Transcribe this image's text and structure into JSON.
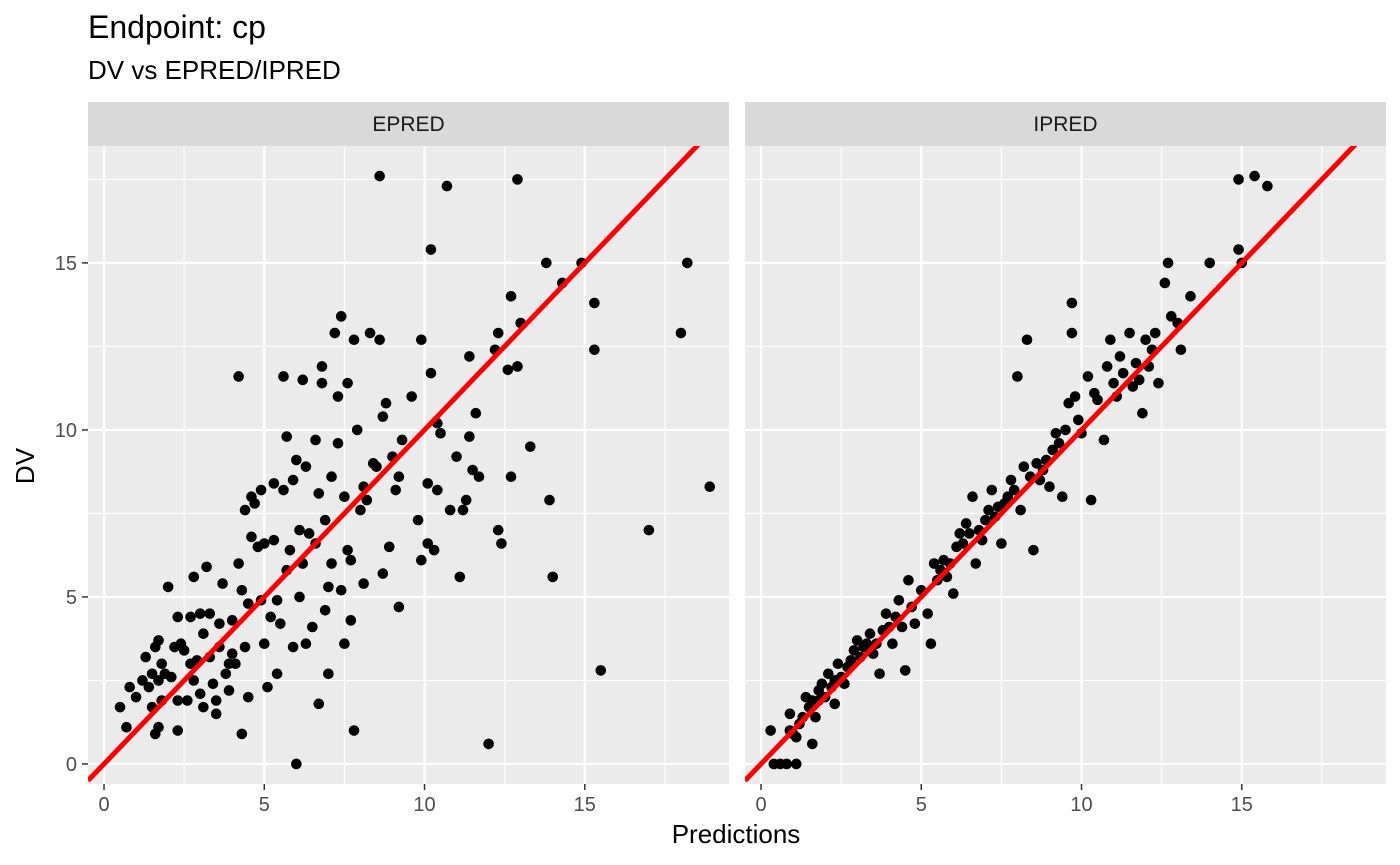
{
  "chart_data": {
    "type": "scatter",
    "title": "Endpoint:  cp",
    "subtitle": "DV vs EPRED/IPRED",
    "xlabel": "Predictions",
    "ylabel": "DV",
    "xlim": [
      -0.5,
      19.5
    ],
    "ylim": [
      -0.6,
      18.5
    ],
    "x_ticks": [
      0,
      5,
      10,
      15
    ],
    "y_ticks": [
      0,
      5,
      10,
      15
    ],
    "grid": true,
    "reference_line": {
      "slope": 1,
      "intercept": 0,
      "color": "#ff0000"
    },
    "point_color": "#000000",
    "panels": [
      {
        "label": "EPRED",
        "points": [
          [
            0.5,
            1.7
          ],
          [
            0.7,
            1.1
          ],
          [
            0.8,
            2.3
          ],
          [
            1.0,
            2.0
          ],
          [
            1.2,
            2.5
          ],
          [
            1.3,
            3.2
          ],
          [
            1.4,
            2.3
          ],
          [
            1.5,
            2.7
          ],
          [
            1.5,
            1.7
          ],
          [
            1.6,
            3.5
          ],
          [
            1.6,
            0.9
          ],
          [
            1.7,
            3.7
          ],
          [
            1.7,
            2.5
          ],
          [
            1.7,
            1.1
          ],
          [
            1.8,
            3.0
          ],
          [
            1.8,
            1.9
          ],
          [
            1.9,
            2.7
          ],
          [
            2.0,
            5.3
          ],
          [
            2.1,
            2.6
          ],
          [
            2.2,
            3.5
          ],
          [
            2.3,
            4.4
          ],
          [
            2.3,
            1.9
          ],
          [
            2.3,
            1.0
          ],
          [
            2.4,
            3.6
          ],
          [
            2.5,
            3.4
          ],
          [
            2.6,
            1.9
          ],
          [
            2.7,
            4.4
          ],
          [
            2.7,
            3.0
          ],
          [
            2.8,
            2.5
          ],
          [
            2.8,
            5.6
          ],
          [
            2.9,
            3.1
          ],
          [
            3.0,
            4.5
          ],
          [
            3.0,
            2.1
          ],
          [
            3.1,
            3.9
          ],
          [
            3.1,
            1.7
          ],
          [
            3.2,
            5.9
          ],
          [
            3.3,
            4.5
          ],
          [
            3.3,
            3.2
          ],
          [
            3.4,
            2.4
          ],
          [
            3.5,
            1.9
          ],
          [
            3.5,
            1.5
          ],
          [
            3.6,
            4.2
          ],
          [
            3.6,
            3.5
          ],
          [
            3.7,
            5.4
          ],
          [
            3.8,
            2.7
          ],
          [
            3.9,
            3.0
          ],
          [
            3.9,
            2.2
          ],
          [
            4.0,
            4.3
          ],
          [
            4.0,
            3.3
          ],
          [
            4.1,
            3.0
          ],
          [
            4.2,
            6.0
          ],
          [
            4.2,
            11.6
          ],
          [
            4.3,
            0.9
          ],
          [
            4.3,
            5.2
          ],
          [
            4.4,
            3.5
          ],
          [
            4.4,
            7.6
          ],
          [
            4.5,
            4.8
          ],
          [
            4.5,
            2.0
          ],
          [
            4.6,
            6.8
          ],
          [
            4.6,
            8.0
          ],
          [
            4.7,
            7.8
          ],
          [
            4.8,
            6.5
          ],
          [
            4.9,
            4.9
          ],
          [
            4.9,
            8.2
          ],
          [
            5.0,
            6.6
          ],
          [
            5.0,
            3.6
          ],
          [
            5.1,
            2.3
          ],
          [
            5.2,
            4.4
          ],
          [
            5.3,
            6.7
          ],
          [
            5.3,
            8.4
          ],
          [
            5.4,
            4.9
          ],
          [
            5.4,
            2.7
          ],
          [
            5.5,
            4.2
          ],
          [
            5.6,
            8.2
          ],
          [
            5.6,
            11.6
          ],
          [
            5.7,
            5.8
          ],
          [
            5.7,
            9.8
          ],
          [
            5.8,
            6.4
          ],
          [
            5.9,
            3.5
          ],
          [
            5.9,
            8.5
          ],
          [
            6.0,
            9.1
          ],
          [
            6.0,
            0.0
          ],
          [
            6.1,
            7.0
          ],
          [
            6.1,
            5.0
          ],
          [
            6.2,
            11.5
          ],
          [
            6.2,
            6.0
          ],
          [
            6.3,
            3.6
          ],
          [
            6.3,
            8.9
          ],
          [
            6.4,
            6.9
          ],
          [
            6.5,
            4.1
          ],
          [
            6.6,
            6.6
          ],
          [
            6.6,
            9.7
          ],
          [
            6.7,
            1.8
          ],
          [
            6.7,
            8.1
          ],
          [
            6.8,
            11.4
          ],
          [
            6.8,
            11.9
          ],
          [
            6.9,
            4.6
          ],
          [
            6.9,
            7.3
          ],
          [
            7.0,
            2.7
          ],
          [
            7.0,
            5.3
          ],
          [
            7.1,
            6.0
          ],
          [
            7.1,
            8.6
          ],
          [
            7.2,
            12.9
          ],
          [
            7.3,
            9.6
          ],
          [
            7.3,
            11.0
          ],
          [
            7.4,
            13.4
          ],
          [
            7.4,
            5.2
          ],
          [
            7.5,
            8.0
          ],
          [
            7.5,
            3.6
          ],
          [
            7.6,
            6.4
          ],
          [
            7.6,
            11.4
          ],
          [
            7.7,
            6.1
          ],
          [
            7.7,
            4.3
          ],
          [
            7.8,
            12.7
          ],
          [
            7.8,
            1.0
          ],
          [
            7.9,
            10.0
          ],
          [
            8.0,
            7.6
          ],
          [
            8.1,
            5.4
          ],
          [
            8.1,
            8.3
          ],
          [
            8.2,
            7.9
          ],
          [
            8.3,
            12.9
          ],
          [
            8.4,
            9.0
          ],
          [
            8.5,
            8.9
          ],
          [
            8.6,
            12.7
          ],
          [
            8.6,
            17.6
          ],
          [
            8.7,
            5.7
          ],
          [
            8.7,
            10.4
          ],
          [
            8.8,
            10.8
          ],
          [
            8.9,
            6.5
          ],
          [
            9.0,
            9.2
          ],
          [
            9.1,
            8.2
          ],
          [
            9.2,
            8.6
          ],
          [
            9.2,
            4.7
          ],
          [
            9.3,
            9.7
          ],
          [
            9.6,
            11.0
          ],
          [
            9.8,
            7.3
          ],
          [
            9.9,
            12.7
          ],
          [
            9.9,
            6.1
          ],
          [
            10.1,
            8.4
          ],
          [
            10.1,
            6.6
          ],
          [
            10.2,
            15.4
          ],
          [
            10.2,
            11.7
          ],
          [
            10.3,
            6.4
          ],
          [
            10.4,
            10.2
          ],
          [
            10.4,
            8.2
          ],
          [
            10.5,
            9.9
          ],
          [
            10.7,
            17.3
          ],
          [
            10.8,
            7.6
          ],
          [
            11.0,
            9.2
          ],
          [
            11.1,
            5.6
          ],
          [
            11.2,
            7.6
          ],
          [
            11.3,
            7.9
          ],
          [
            11.4,
            12.2
          ],
          [
            11.4,
            9.8
          ],
          [
            11.5,
            8.8
          ],
          [
            11.6,
            10.5
          ],
          [
            11.7,
            8.6
          ],
          [
            12.0,
            0.6
          ],
          [
            12.2,
            12.4
          ],
          [
            12.3,
            12.9
          ],
          [
            12.3,
            7.0
          ],
          [
            12.4,
            6.6
          ],
          [
            12.6,
            11.8
          ],
          [
            12.7,
            8.6
          ],
          [
            12.7,
            14.0
          ],
          [
            12.9,
            11.9
          ],
          [
            13.0,
            13.2
          ],
          [
            12.9,
            17.5
          ],
          [
            13.3,
            9.5
          ],
          [
            13.8,
            15.0
          ],
          [
            13.9,
            7.9
          ],
          [
            14.0,
            5.6
          ],
          [
            14.3,
            14.4
          ],
          [
            14.9,
            15.0
          ],
          [
            15.3,
            13.8
          ],
          [
            15.3,
            12.4
          ],
          [
            15.5,
            2.8
          ],
          [
            17.0,
            7.0
          ],
          [
            18.0,
            12.9
          ],
          [
            18.2,
            15.0
          ],
          [
            18.9,
            8.3
          ]
        ]
      },
      {
        "label": "IPRED",
        "points": [
          [
            0.3,
            1.0
          ],
          [
            0.4,
            0.0
          ],
          [
            0.6,
            0.0
          ],
          [
            0.8,
            0.0
          ],
          [
            0.9,
            1.5
          ],
          [
            0.9,
            1.0
          ],
          [
            1.0,
            0.9
          ],
          [
            1.1,
            0.0
          ],
          [
            1.1,
            0.8
          ],
          [
            1.2,
            1.2
          ],
          [
            1.3,
            1.4
          ],
          [
            1.4,
            2.0
          ],
          [
            1.5,
            1.7
          ],
          [
            1.6,
            0.6
          ],
          [
            1.6,
            1.9
          ],
          [
            1.7,
            1.4
          ],
          [
            1.8,
            2.2
          ],
          [
            1.8,
            1.9
          ],
          [
            1.9,
            2.4
          ],
          [
            2.0,
            2.0
          ],
          [
            2.1,
            2.7
          ],
          [
            2.2,
            2.3
          ],
          [
            2.3,
            2.5
          ],
          [
            2.3,
            1.8
          ],
          [
            2.4,
            3.0
          ],
          [
            2.5,
            2.6
          ],
          [
            2.6,
            2.4
          ],
          [
            2.7,
            2.9
          ],
          [
            2.8,
            3.1
          ],
          [
            2.9,
            3.4
          ],
          [
            3.0,
            3.7
          ],
          [
            3.1,
            3.2
          ],
          [
            3.2,
            3.5
          ],
          [
            3.3,
            3.6
          ],
          [
            3.4,
            3.9
          ],
          [
            3.5,
            3.3
          ],
          [
            3.6,
            3.6
          ],
          [
            3.7,
            2.7
          ],
          [
            3.8,
            4.0
          ],
          [
            3.9,
            4.5
          ],
          [
            4.0,
            4.1
          ],
          [
            4.1,
            3.6
          ],
          [
            4.2,
            4.4
          ],
          [
            4.3,
            4.9
          ],
          [
            4.4,
            4.1
          ],
          [
            4.5,
            2.8
          ],
          [
            4.6,
            5.5
          ],
          [
            4.7,
            4.7
          ],
          [
            4.8,
            4.2
          ],
          [
            5.0,
            5.2
          ],
          [
            5.2,
            4.5
          ],
          [
            5.3,
            3.6
          ],
          [
            5.4,
            6.0
          ],
          [
            5.5,
            5.5
          ],
          [
            5.6,
            5.8
          ],
          [
            5.7,
            6.1
          ],
          [
            5.8,
            5.6
          ],
          [
            5.9,
            6.0
          ],
          [
            6.0,
            5.1
          ],
          [
            6.1,
            6.5
          ],
          [
            6.2,
            6.9
          ],
          [
            6.3,
            6.6
          ],
          [
            6.4,
            7.2
          ],
          [
            6.5,
            6.9
          ],
          [
            6.6,
            8.0
          ],
          [
            6.7,
            6.0
          ],
          [
            6.8,
            7.0
          ],
          [
            6.9,
            6.7
          ],
          [
            7.0,
            7.3
          ],
          [
            7.1,
            7.6
          ],
          [
            7.2,
            8.2
          ],
          [
            7.3,
            7.4
          ],
          [
            7.4,
            7.7
          ],
          [
            7.5,
            6.6
          ],
          [
            7.6,
            7.8
          ],
          [
            7.7,
            8.0
          ],
          [
            7.8,
            8.5
          ],
          [
            7.9,
            8.2
          ],
          [
            8.0,
            11.6
          ],
          [
            8.1,
            7.6
          ],
          [
            8.2,
            8.9
          ],
          [
            8.3,
            12.7
          ],
          [
            8.4,
            8.6
          ],
          [
            8.5,
            6.4
          ],
          [
            8.6,
            9.0
          ],
          [
            8.7,
            8.5
          ],
          [
            8.8,
            8.8
          ],
          [
            8.9,
            9.1
          ],
          [
            9.0,
            8.3
          ],
          [
            9.1,
            9.4
          ],
          [
            9.2,
            9.9
          ],
          [
            9.3,
            9.6
          ],
          [
            9.4,
            8.0
          ],
          [
            9.5,
            10.0
          ],
          [
            9.6,
            10.8
          ],
          [
            9.7,
            12.9
          ],
          [
            9.7,
            13.8
          ],
          [
            9.8,
            11.0
          ],
          [
            9.9,
            10.3
          ],
          [
            10.0,
            9.9
          ],
          [
            10.2,
            11.6
          ],
          [
            10.3,
            7.9
          ],
          [
            10.4,
            11.1
          ],
          [
            10.5,
            10.9
          ],
          [
            10.7,
            9.7
          ],
          [
            10.8,
            11.9
          ],
          [
            10.9,
            12.7
          ],
          [
            11.0,
            11.4
          ],
          [
            11.1,
            11.0
          ],
          [
            11.2,
            12.2
          ],
          [
            11.3,
            11.7
          ],
          [
            11.5,
            12.9
          ],
          [
            11.6,
            11.3
          ],
          [
            11.7,
            12.0
          ],
          [
            11.8,
            11.5
          ],
          [
            11.9,
            10.5
          ],
          [
            12.0,
            12.7
          ],
          [
            12.1,
            11.9
          ],
          [
            12.2,
            12.4
          ],
          [
            12.3,
            12.9
          ],
          [
            12.4,
            11.4
          ],
          [
            12.6,
            14.4
          ],
          [
            12.7,
            15.0
          ],
          [
            12.8,
            13.4
          ],
          [
            13.0,
            13.2
          ],
          [
            13.1,
            12.4
          ],
          [
            13.4,
            14.0
          ],
          [
            14.0,
            15.0
          ],
          [
            14.9,
            17.5
          ],
          [
            14.9,
            15.4
          ],
          [
            15.0,
            15.0
          ],
          [
            15.4,
            17.6
          ],
          [
            15.8,
            17.3
          ]
        ]
      }
    ]
  }
}
